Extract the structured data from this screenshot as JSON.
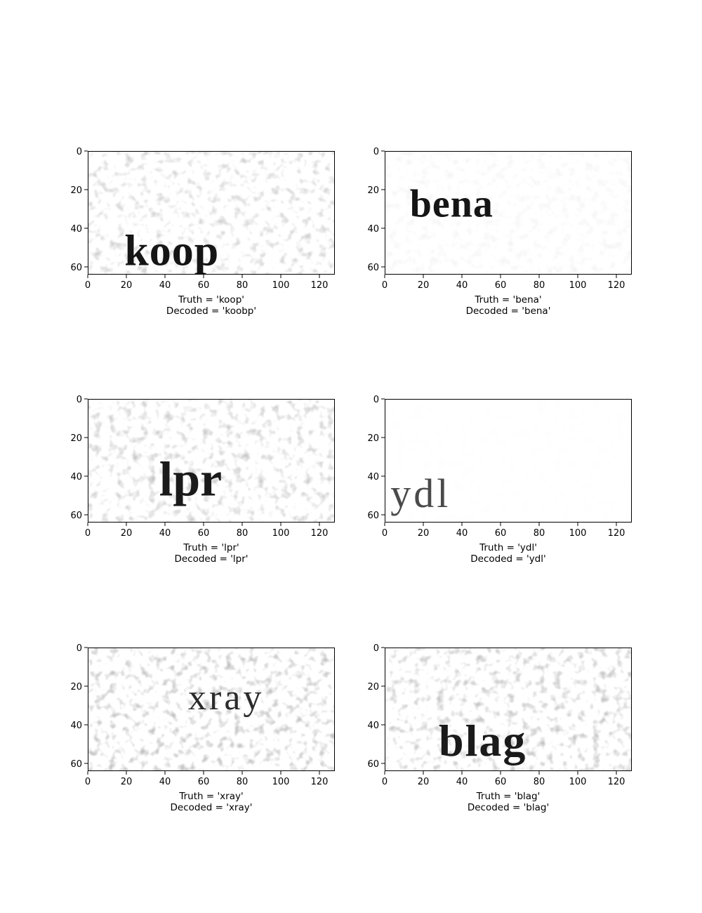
{
  "chart_data": [
    {
      "type": "image",
      "x_ticks": [
        0,
        20,
        40,
        60,
        80,
        100,
        120
      ],
      "y_ticks": [
        0,
        20,
        40,
        60
      ],
      "xlim": [
        0,
        128
      ],
      "ylim": [
        64,
        0
      ],
      "image_text": "koop",
      "caption": [
        "Truth = 'koop'",
        "Decoded = 'koobp'"
      ],
      "truth": "koop",
      "decoded": "koobp"
    },
    {
      "type": "image",
      "x_ticks": [
        0,
        20,
        40,
        60,
        80,
        100,
        120
      ],
      "y_ticks": [
        0,
        20,
        40,
        60
      ],
      "xlim": [
        0,
        128
      ],
      "ylim": [
        64,
        0
      ],
      "image_text": "bena",
      "caption": [
        "Truth = 'bena'",
        "Decoded = 'bena'"
      ],
      "truth": "bena",
      "decoded": "bena"
    },
    {
      "type": "image",
      "x_ticks": [
        0,
        20,
        40,
        60,
        80,
        100,
        120
      ],
      "y_ticks": [
        0,
        20,
        40,
        60
      ],
      "xlim": [
        0,
        128
      ],
      "ylim": [
        64,
        0
      ],
      "image_text": "lpr",
      "caption": [
        "Truth = 'lpr'",
        "Decoded = 'lpr'"
      ],
      "truth": "lpr",
      "decoded": "lpr"
    },
    {
      "type": "image",
      "x_ticks": [
        0,
        20,
        40,
        60,
        80,
        100,
        120
      ],
      "y_ticks": [
        0,
        20,
        40,
        60
      ],
      "xlim": [
        0,
        128
      ],
      "ylim": [
        64,
        0
      ],
      "image_text": "ydl",
      "caption": [
        "Truth = 'ydl'",
        "Decoded = 'ydl'"
      ],
      "truth": "ydl",
      "decoded": "ydl"
    },
    {
      "type": "image",
      "x_ticks": [
        0,
        20,
        40,
        60,
        80,
        100,
        120
      ],
      "y_ticks": [
        0,
        20,
        40,
        60
      ],
      "xlim": [
        0,
        128
      ],
      "ylim": [
        64,
        0
      ],
      "image_text": "xray",
      "caption": [
        "Truth = 'xray'",
        "Decoded = 'xray'"
      ],
      "truth": "xray",
      "decoded": "xray"
    },
    {
      "type": "image",
      "x_ticks": [
        0,
        20,
        40,
        60,
        80,
        100,
        120
      ],
      "y_ticks": [
        0,
        20,
        40,
        60
      ],
      "xlim": [
        0,
        128
      ],
      "ylim": [
        64,
        0
      ],
      "image_text": "blag",
      "caption": [
        "Truth = 'blag'",
        "Decoded = 'blag'"
      ],
      "truth": "blag",
      "decoded": "blag"
    }
  ]
}
